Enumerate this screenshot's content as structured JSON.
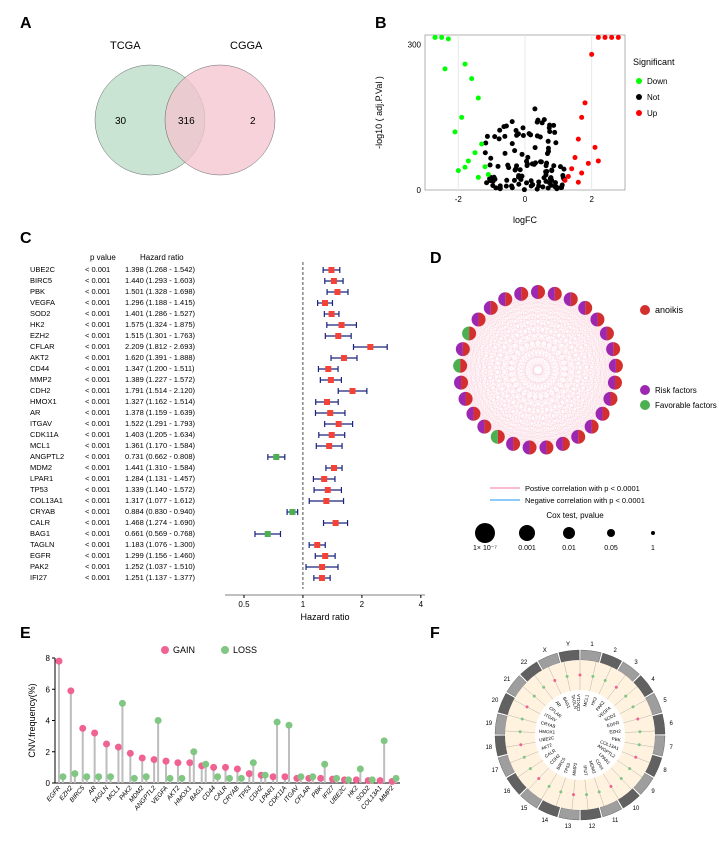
{
  "panelA": {
    "label": "A",
    "venn": {
      "left_label": "TCGA",
      "right_label": "CGGA",
      "left_only": "30",
      "overlap": "316",
      "right_only": "2",
      "left_color": "#b8dcc4",
      "right_color": "#f5c4d0"
    }
  },
  "panelB": {
    "label": "B",
    "volcano": {
      "type": "scatter",
      "xlabel": "logFC",
      "ylabel": "-log10 ( adj.P.Val )",
      "legend_title": "Significant",
      "legend_items": [
        "Down",
        "Not",
        "Up"
      ],
      "legend_colors": [
        "#00ff00",
        "#000000",
        "#ff0000"
      ],
      "xlim": [
        -3,
        3
      ],
      "ylim": [
        0,
        320
      ],
      "xtick_vals": [
        -2,
        0,
        2
      ],
      "ytick_vals": [
        0,
        300
      ],
      "points_down": [
        [
          -2.7,
          315
        ],
        [
          -2.5,
          315
        ],
        [
          -2.3,
          312
        ],
        [
          -2.4,
          250
        ],
        [
          -1.8,
          260
        ],
        [
          -1.6,
          230
        ],
        [
          -1.4,
          190
        ],
        [
          -1.9,
          150
        ],
        [
          -2.1,
          120
        ],
        [
          -1.3,
          95
        ],
        [
          -1.5,
          77
        ],
        [
          -1.7,
          60
        ],
        [
          -1.2,
          48
        ],
        [
          -2.0,
          40
        ],
        [
          -1.1,
          32
        ],
        [
          -1.4,
          26
        ],
        [
          -1.8,
          47
        ]
      ],
      "points_up": [
        [
          2.8,
          315
        ],
        [
          2.6,
          315
        ],
        [
          2.4,
          315
        ],
        [
          2.2,
          315
        ],
        [
          2.0,
          280
        ],
        [
          1.8,
          180
        ],
        [
          1.7,
          150
        ],
        [
          1.6,
          105
        ],
        [
          2.1,
          88
        ],
        [
          1.5,
          67
        ],
        [
          1.9,
          55
        ],
        [
          1.4,
          44
        ],
        [
          1.7,
          35
        ],
        [
          1.3,
          28
        ],
        [
          2.2,
          60
        ],
        [
          1.2,
          20
        ],
        [
          1.6,
          16
        ]
      ],
      "points_not_seed": 120,
      "point_size": 2.5,
      "background_color": "#ffffff",
      "axis_color": "#000000",
      "grid_color": "#e8e8e8"
    }
  },
  "panelC": {
    "label": "C",
    "forest": {
      "header_pval": "p value",
      "header_hr": "Hazard ratio",
      "xlabel": "Hazard ratio",
      "xticks": [
        "0.5",
        "1",
        "2",
        "4"
      ],
      "xlim": [
        0.4,
        4.2
      ],
      "ref_line": 1,
      "marker_risk_color": "#f44336",
      "marker_fav_color": "#4caf50",
      "whisker_color": "#1a237e",
      "fontsize": 8,
      "genes": [
        {
          "name": "UBE2C",
          "pval": "< 0.001",
          "hr": "1.398 (1.268 - 1.542)",
          "est": 1.398,
          "lo": 1.268,
          "hi": 1.542,
          "fav": false
        },
        {
          "name": "BIRC5",
          "pval": "< 0.001",
          "hr": "1.440 (1.293 - 1.603)",
          "est": 1.44,
          "lo": 1.293,
          "hi": 1.603,
          "fav": false
        },
        {
          "name": "PBK",
          "pval": "< 0.001",
          "hr": "1.501 (1.328 - 1.698)",
          "est": 1.501,
          "lo": 1.328,
          "hi": 1.698,
          "fav": false
        },
        {
          "name": "VEGFA",
          "pval": "< 0.001",
          "hr": "1.296 (1.188 - 1.415)",
          "est": 1.296,
          "lo": 1.188,
          "hi": 1.415,
          "fav": false
        },
        {
          "name": "SOD2",
          "pval": "< 0.001",
          "hr": "1.401 (1.286 - 1.527)",
          "est": 1.401,
          "lo": 1.286,
          "hi": 1.527,
          "fav": false
        },
        {
          "name": "HK2",
          "pval": "< 0.001",
          "hr": "1.575 (1.324 - 1.875)",
          "est": 1.575,
          "lo": 1.324,
          "hi": 1.875,
          "fav": false
        },
        {
          "name": "EZH2",
          "pval": "< 0.001",
          "hr": "1.515 (1.301 - 1.763)",
          "est": 1.515,
          "lo": 1.301,
          "hi": 1.763,
          "fav": false
        },
        {
          "name": "CFLAR",
          "pval": "< 0.001",
          "hr": "2.209 (1.812 - 2.693)",
          "est": 2.209,
          "lo": 1.812,
          "hi": 2.693,
          "fav": false
        },
        {
          "name": "AKT2",
          "pval": "< 0.001",
          "hr": "1.620 (1.391 - 1.888)",
          "est": 1.62,
          "lo": 1.391,
          "hi": 1.888,
          "fav": false
        },
        {
          "name": "CD44",
          "pval": "< 0.001",
          "hr": "1.347 (1.200 - 1.511)",
          "est": 1.347,
          "lo": 1.2,
          "hi": 1.511,
          "fav": false
        },
        {
          "name": "MMP2",
          "pval": "< 0.001",
          "hr": "1.389 (1.227 - 1.572)",
          "est": 1.389,
          "lo": 1.227,
          "hi": 1.572,
          "fav": false
        },
        {
          "name": "CDH2",
          "pval": "< 0.001",
          "hr": "1.791 (1.514 - 2.120)",
          "est": 1.791,
          "lo": 1.514,
          "hi": 2.12,
          "fav": false
        },
        {
          "name": "HMOX1",
          "pval": "< 0.001",
          "hr": "1.327 (1.162 - 1.514)",
          "est": 1.327,
          "lo": 1.162,
          "hi": 1.514,
          "fav": false
        },
        {
          "name": "AR",
          "pval": "< 0.001",
          "hr": "1.378 (1.159 - 1.639)",
          "est": 1.378,
          "lo": 1.159,
          "hi": 1.639,
          "fav": false
        },
        {
          "name": "ITGAV",
          "pval": "< 0.001",
          "hr": "1.522 (1.291 - 1.793)",
          "est": 1.522,
          "lo": 1.291,
          "hi": 1.793,
          "fav": false
        },
        {
          "name": "CDK11A",
          "pval": "< 0.001",
          "hr": "1.403 (1.205 - 1.634)",
          "est": 1.403,
          "lo": 1.205,
          "hi": 1.634,
          "fav": false
        },
        {
          "name": "MCL1",
          "pval": "< 0.001",
          "hr": "1.361 (1.170 - 1.584)",
          "est": 1.361,
          "lo": 1.17,
          "hi": 1.584,
          "fav": false
        },
        {
          "name": "ANGPTL2",
          "pval": "< 0.001",
          "hr": "0.731 (0.662 - 0.808)",
          "est": 0.731,
          "lo": 0.662,
          "hi": 0.808,
          "fav": true
        },
        {
          "name": "MDM2",
          "pval": "< 0.001",
          "hr": "1.441 (1.310 - 1.584)",
          "est": 1.441,
          "lo": 1.31,
          "hi": 1.584,
          "fav": false
        },
        {
          "name": "LPAR1",
          "pval": "< 0.001",
          "hr": "1.284 (1.131 - 1.457)",
          "est": 1.284,
          "lo": 1.131,
          "hi": 1.457,
          "fav": false
        },
        {
          "name": "TP53",
          "pval": "< 0.001",
          "hr": "1.339 (1.140 - 1.572)",
          "est": 1.339,
          "lo": 1.14,
          "hi": 1.572,
          "fav": false
        },
        {
          "name": "COL13A1",
          "pval": "< 0.001",
          "hr": "1.317 (1.077 - 1.612)",
          "est": 1.317,
          "lo": 1.077,
          "hi": 1.612,
          "fav": false
        },
        {
          "name": "CRYAB",
          "pval": "< 0.001",
          "hr": "0.884 (0.830 - 0.940)",
          "est": 0.884,
          "lo": 0.83,
          "hi": 0.94,
          "fav": true
        },
        {
          "name": "CALR",
          "pval": "< 0.001",
          "hr": "1.468 (1.274 - 1.690)",
          "est": 1.468,
          "lo": 1.274,
          "hi": 1.69,
          "fav": false
        },
        {
          "name": "BAG1",
          "pval": "< 0.001",
          "hr": "0.661 (0.569 - 0.768)",
          "est": 0.661,
          "lo": 0.569,
          "hi": 0.768,
          "fav": true
        },
        {
          "name": "TAGLN",
          "pval": "< 0.001",
          "hr": "1.183 (1.076 - 1.300)",
          "est": 1.183,
          "lo": 1.076,
          "hi": 1.3,
          "fav": false
        },
        {
          "name": "EGFR",
          "pval": "< 0.001",
          "hr": "1.299 (1.156 - 1.460)",
          "est": 1.299,
          "lo": 1.156,
          "hi": 1.46,
          "fav": false
        },
        {
          "name": "PAK2",
          "pval": "< 0.001",
          "hr": "1.252 (1.037 - 1.510)",
          "est": 1.252,
          "lo": 1.037,
          "hi": 1.51,
          "fav": false
        },
        {
          "name": "IFI27",
          "pval": "< 0.001",
          "hr": "1.251 (1.137 - 1.377)",
          "est": 1.251,
          "lo": 1.137,
          "hi": 1.377,
          "fav": false
        }
      ]
    }
  },
  "panelD": {
    "label": "D",
    "network": {
      "anoikis_label": "anoikis",
      "anoikis_color": "#d32f2f",
      "risk_label": "Risk factors",
      "risk_color": "#9c27b0",
      "fav_label": "Favorable factors",
      "fav_color": "#4caf50",
      "pos_corr_label": "Postive correlation with  p < 0.0001",
      "pos_corr_color": "#f8bbd0",
      "neg_corr_label": "Negative correlation with  p < 0.0001",
      "neg_corr_color": "#90caf9",
      "cox_label": "Cox test, pvalue",
      "cox_sizes": [
        "1× 10⁻⁷",
        "0.001",
        "0.01",
        "0.05",
        "1"
      ],
      "cox_radii": [
        10,
        8,
        6,
        4,
        2
      ],
      "line_color": "#f5b5c8",
      "n_nodes": 29,
      "fav_indices": [
        17,
        22,
        24
      ]
    }
  },
  "panelE": {
    "label": "E",
    "cnv": {
      "type": "lollipop",
      "ylabel": "CNV.frequency(%)",
      "gain_label": "GAIN",
      "loss_label": "LOSS",
      "gain_color": "#f06292",
      "loss_color": "#81c784",
      "stick_color": "#bdbdbd",
      "ylim": [
        0,
        8
      ],
      "yticks": [
        0,
        2,
        4,
        6,
        8
      ],
      "fontsize": 7,
      "genes": [
        "EGFR",
        "EZH2",
        "BIRC5",
        "AR",
        "TAGLN",
        "MCL1",
        "PAK2",
        "MDM2",
        "ANGPTL2",
        "VEGFA",
        "AKT2",
        "HMOX1",
        "BAG1",
        "CD44",
        "CALR",
        "CRYAB",
        "TP53",
        "CDH2",
        "LPAR1",
        "CDK11A",
        "ITGAV",
        "CFLAR",
        "PBK",
        "IFI27",
        "UBE2C",
        "HK2",
        "SOD2",
        "COL13A1",
        "MMP2"
      ],
      "gain_vals": [
        7.8,
        5.9,
        3.5,
        3.2,
        2.5,
        2.3,
        1.9,
        1.6,
        1.5,
        1.4,
        1.3,
        1.3,
        1.1,
        1.0,
        1.0,
        0.9,
        0.6,
        0.5,
        0.4,
        0.4,
        0.3,
        0.3,
        0.3,
        0.25,
        0.2,
        0.2,
        0.15,
        0.15,
        0.1
      ],
      "loss_vals": [
        0.4,
        0.6,
        0.4,
        0.4,
        0.4,
        5.1,
        0.3,
        0.4,
        4.0,
        0.3,
        0.3,
        2.0,
        1.2,
        0.4,
        0.3,
        0.3,
        1.3,
        0.5,
        3.9,
        3.7,
        0.4,
        0.4,
        1.2,
        0.3,
        0.2,
        0.9,
        0.2,
        2.7,
        0.3
      ]
    }
  },
  "panelF": {
    "label": "F",
    "circos": {
      "chromosomes": [
        "1",
        "2",
        "3",
        "4",
        "5",
        "6",
        "7",
        "8",
        "9",
        "10",
        "11",
        "12",
        "13",
        "14",
        "15",
        "16",
        "17",
        "18",
        "19",
        "20",
        "21",
        "22",
        "X",
        "Y"
      ],
      "chr_color": "#424242",
      "ring_bg": "#fff3e0",
      "tick_color": "#9e9e9e",
      "label_fontsize": 6,
      "gene_labels": [
        "CDK11A",
        "MCL1",
        "HK2",
        "PAK2",
        "VEGFA",
        "SOD2",
        "EGFR",
        "EZH2",
        "PBK",
        "COL13A1",
        "ANGPTL2",
        "LPAR1",
        "CD44",
        "MDM2",
        "IFI27",
        "MMP2",
        "TP53",
        "BIRC5",
        "CDH2",
        "CALR",
        "AKT2",
        "UBE2C",
        "HMOX1",
        "CRYAB",
        "ITGAV",
        "CFLAR",
        "AR",
        "BAG1",
        "TAGLN"
      ]
    }
  }
}
